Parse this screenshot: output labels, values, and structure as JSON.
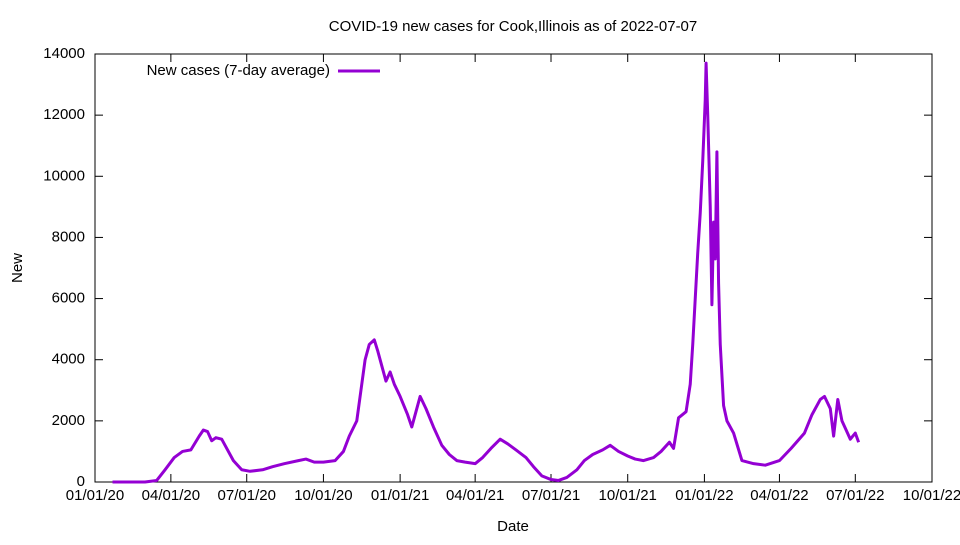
{
  "chart_data": {
    "type": "line",
    "title": "COVID-19 new cases for Cook,Illinois as of 2022-07-07",
    "x_label": "Date",
    "y_label": "New",
    "series": [
      {
        "name": "New cases (7-day average)",
        "color": "#9400d3",
        "x": [
          "2020-01-22",
          "2020-03-01",
          "2020-03-15",
          "2020-03-25",
          "2020-04-05",
          "2020-04-15",
          "2020-04-25",
          "2020-05-05",
          "2020-05-10",
          "2020-05-15",
          "2020-05-20",
          "2020-05-25",
          "2020-06-01",
          "2020-06-05",
          "2020-06-15",
          "2020-06-25",
          "2020-07-05",
          "2020-07-20",
          "2020-08-01",
          "2020-08-15",
          "2020-09-01",
          "2020-09-10",
          "2020-09-20",
          "2020-10-01",
          "2020-10-15",
          "2020-10-25",
          "2020-11-01",
          "2020-11-10",
          "2020-11-15",
          "2020-11-20",
          "2020-11-25",
          "2020-12-01",
          "2020-12-05",
          "2020-12-10",
          "2020-12-15",
          "2020-12-20",
          "2020-12-25",
          "2021-01-01",
          "2021-01-10",
          "2021-01-15",
          "2021-01-20",
          "2021-01-25",
          "2021-02-01",
          "2021-02-10",
          "2021-02-20",
          "2021-03-01",
          "2021-03-10",
          "2021-03-20",
          "2021-04-01",
          "2021-04-10",
          "2021-04-20",
          "2021-05-01",
          "2021-05-10",
          "2021-05-20",
          "2021-06-01",
          "2021-06-10",
          "2021-06-20",
          "2021-07-01",
          "2021-07-10",
          "2021-07-20",
          "2021-08-01",
          "2021-08-10",
          "2021-08-20",
          "2021-09-01",
          "2021-09-10",
          "2021-09-20",
          "2021-10-01",
          "2021-10-10",
          "2021-10-20",
          "2021-11-01",
          "2021-11-10",
          "2021-11-20",
          "2021-11-25",
          "2021-12-01",
          "2021-12-10",
          "2021-12-15",
          "2021-12-18",
          "2021-12-21",
          "2021-12-24",
          "2021-12-27",
          "2021-12-30",
          "2022-01-02",
          "2022-01-03",
          "2022-01-05",
          "2022-01-08",
          "2022-01-10",
          "2022-01-12",
          "2022-01-14",
          "2022-01-16",
          "2022-01-18",
          "2022-01-20",
          "2022-01-24",
          "2022-01-28",
          "2022-02-05",
          "2022-02-15",
          "2022-03-01",
          "2022-03-15",
          "2022-04-01",
          "2022-04-15",
          "2022-05-01",
          "2022-05-10",
          "2022-05-20",
          "2022-05-25",
          "2022-06-01",
          "2022-06-05",
          "2022-06-10",
          "2022-06-15",
          "2022-06-20",
          "2022-06-25",
          "2022-07-01",
          "2022-07-05"
        ],
        "values": [
          0,
          0,
          50,
          400,
          800,
          1000,
          1050,
          1500,
          1700,
          1650,
          1350,
          1450,
          1400,
          1200,
          700,
          400,
          350,
          400,
          500,
          600,
          700,
          750,
          650,
          650,
          700,
          1000,
          1500,
          2000,
          3000,
          4000,
          4500,
          4650,
          4300,
          3800,
          3300,
          3600,
          3200,
          2800,
          2200,
          1800,
          2300,
          2800,
          2400,
          1800,
          1200,
          900,
          700,
          650,
          600,
          800,
          1100,
          1400,
          1250,
          1050,
          800,
          500,
          200,
          80,
          50,
          150,
          400,
          700,
          900,
          1050,
          1200,
          1000,
          850,
          750,
          700,
          800,
          1000,
          1300,
          1100,
          2100,
          2300,
          3200,
          4500,
          6000,
          7500,
          8800,
          10500,
          12500,
          13700,
          12000,
          9000,
          5800,
          8500,
          7300,
          10800,
          6500,
          4500,
          2500,
          2000,
          1600,
          700,
          600,
          550,
          700,
          1100,
          1600,
          2200,
          2700,
          2800,
          2400,
          1500,
          2700,
          2000,
          1700,
          1400,
          1600,
          1300
        ]
      }
    ],
    "xlim": [
      "2020-01-01",
      "2022-10-01"
    ],
    "xticks": [
      {
        "value": "2020-01-01",
        "label": "01/01/20"
      },
      {
        "value": "2020-04-01",
        "label": "04/01/20"
      },
      {
        "value": "2020-07-01",
        "label": "07/01/20"
      },
      {
        "value": "2020-10-01",
        "label": "10/01/20"
      },
      {
        "value": "2021-01-01",
        "label": "01/01/21"
      },
      {
        "value": "2021-04-01",
        "label": "04/01/21"
      },
      {
        "value": "2021-07-01",
        "label": "07/01/21"
      },
      {
        "value": "2021-10-01",
        "label": "10/01/21"
      },
      {
        "value": "2022-01-01",
        "label": "01/01/22"
      },
      {
        "value": "2022-04-01",
        "label": "04/01/22"
      },
      {
        "value": "2022-07-01",
        "label": "07/01/22"
      },
      {
        "value": "2022-10-01",
        "label": "10/01/22"
      }
    ],
    "ylim": [
      0,
      14000
    ],
    "yticks": [
      0,
      2000,
      4000,
      6000,
      8000,
      10000,
      12000,
      14000
    ],
    "legend": "top-left"
  }
}
